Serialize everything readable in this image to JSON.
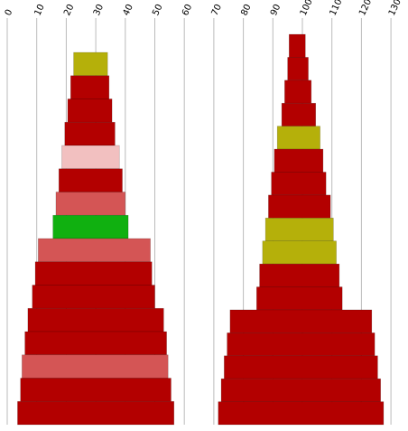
{
  "chart_data": {
    "type": "bar",
    "title": "",
    "xlabel": "",
    "ylabel": "",
    "xlim": [
      0,
      130
    ],
    "grid": true,
    "x_ticks": [
      0,
      10,
      20,
      30,
      40,
      50,
      60,
      70,
      80,
      90,
      100,
      110,
      120,
      130
    ],
    "colors": {
      "dark_red": "#b30000",
      "olive": "#b5b00a",
      "light_pink": "#f2c0c0",
      "salmon": "#d45555",
      "green": "#10b010"
    },
    "stacks": [
      {
        "name": "left",
        "segments": [
          {
            "start": 22.5,
            "end": 34.0,
            "color": "olive"
          },
          {
            "start": 21.5,
            "end": 34.5,
            "color": "dark_red"
          },
          {
            "start": 20.5,
            "end": 35.5,
            "color": "dark_red"
          },
          {
            "start": 19.5,
            "end": 36.5,
            "color": "dark_red"
          },
          {
            "start": 18.5,
            "end": 38.0,
            "color": "light_pink"
          },
          {
            "start": 17.5,
            "end": 39.0,
            "color": "dark_red"
          },
          {
            "start": 16.5,
            "end": 40.0,
            "color": "salmon"
          },
          {
            "start": 15.5,
            "end": 41.0,
            "color": "green"
          },
          {
            "start": 10.5,
            "end": 48.5,
            "color": "salmon"
          },
          {
            "start": 9.5,
            "end": 49.0,
            "color": "dark_red"
          },
          {
            "start": 8.5,
            "end": 50.0,
            "color": "dark_red"
          },
          {
            "start": 7.0,
            "end": 53.0,
            "color": "dark_red"
          },
          {
            "start": 6.0,
            "end": 54.0,
            "color": "dark_red"
          },
          {
            "start": 5.0,
            "end": 54.5,
            "color": "salmon"
          },
          {
            "start": 4.5,
            "end": 55.5,
            "color": "dark_red"
          },
          {
            "start": 3.5,
            "end": 56.5,
            "color": "dark_red"
          }
        ]
      },
      {
        "name": "right",
        "segments": [
          {
            "start": 95.5,
            "end": 101.0,
            "color": "dark_red"
          },
          {
            "start": 95.0,
            "end": 102.0,
            "color": "dark_red"
          },
          {
            "start": 94.0,
            "end": 103.0,
            "color": "dark_red"
          },
          {
            "start": 93.0,
            "end": 104.5,
            "color": "dark_red"
          },
          {
            "start": 91.5,
            "end": 106.0,
            "color": "olive"
          },
          {
            "start": 90.5,
            "end": 107.0,
            "color": "dark_red"
          },
          {
            "start": 89.5,
            "end": 108.0,
            "color": "dark_red"
          },
          {
            "start": 88.5,
            "end": 109.5,
            "color": "dark_red"
          },
          {
            "start": 87.5,
            "end": 110.5,
            "color": "olive"
          },
          {
            "start": 86.5,
            "end": 111.5,
            "color": "olive"
          },
          {
            "start": 85.5,
            "end": 112.5,
            "color": "dark_red"
          },
          {
            "start": 84.5,
            "end": 113.5,
            "color": "dark_red"
          },
          {
            "start": 75.5,
            "end": 123.5,
            "color": "dark_red"
          },
          {
            "start": 74.5,
            "end": 124.5,
            "color": "dark_red"
          },
          {
            "start": 73.5,
            "end": 125.5,
            "color": "dark_red"
          },
          {
            "start": 72.5,
            "end": 126.5,
            "color": "dark_red"
          },
          {
            "start": 71.5,
            "end": 127.5,
            "color": "dark_red"
          }
        ]
      }
    ]
  }
}
